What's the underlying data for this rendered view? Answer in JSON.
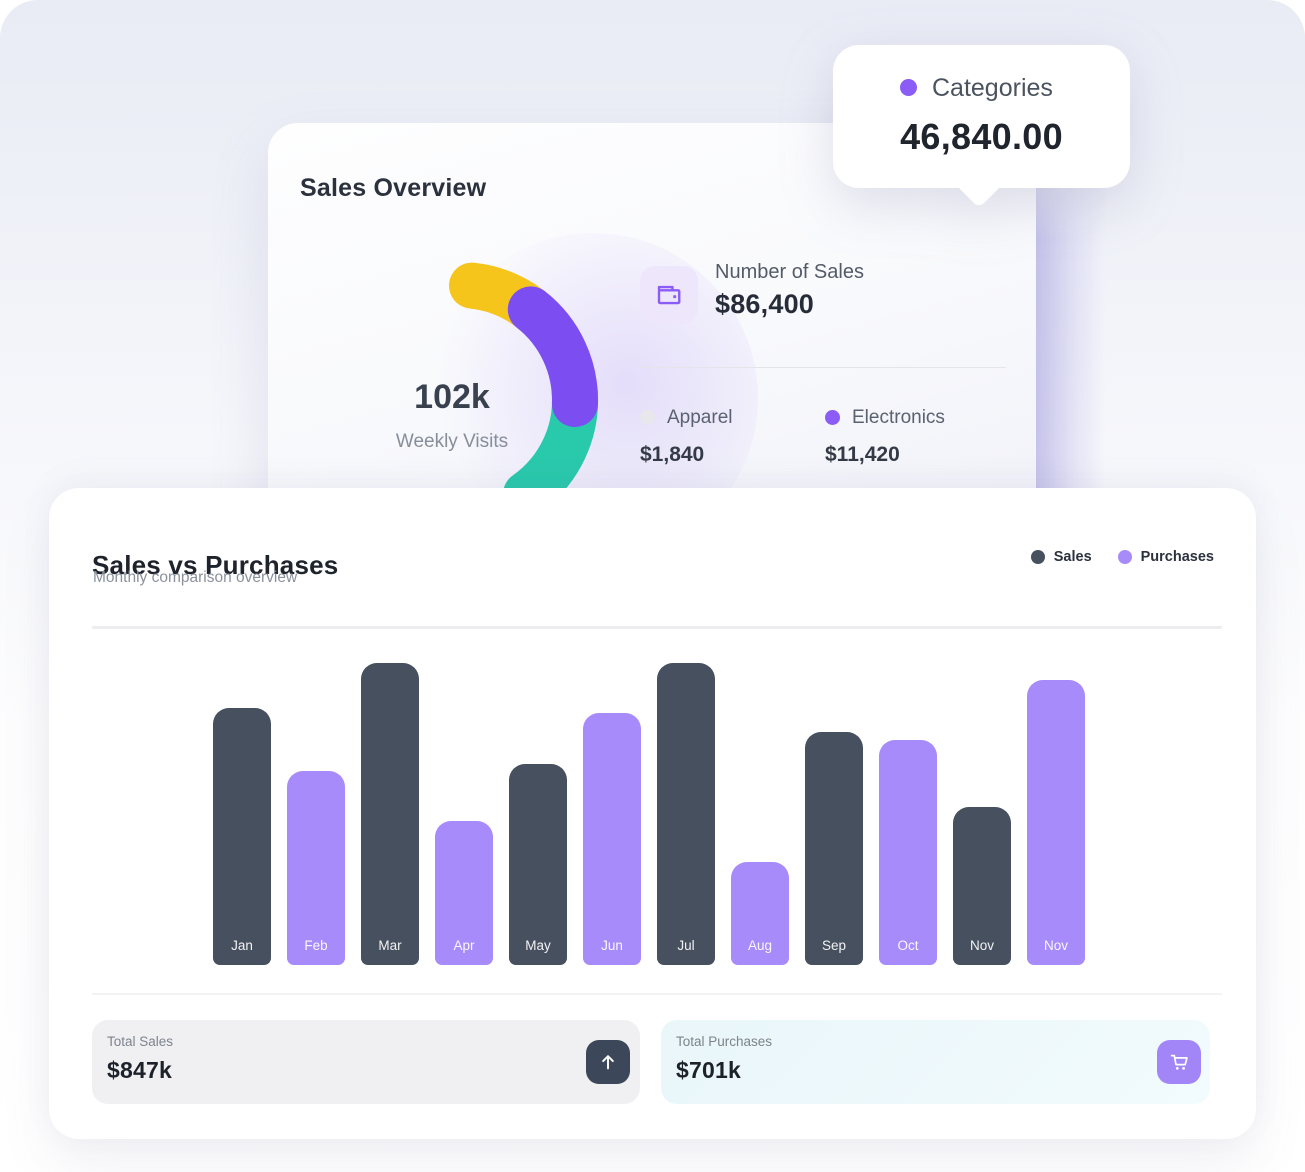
{
  "colors": {
    "sales": "#47505F",
    "purchases": "#A78BFA",
    "accent_purple": "#8B5CF6",
    "gauge_yellow": "#F6C51B",
    "gauge_purple": "#7C4DF0",
    "gauge_teal": "#29C9AC",
    "apparel_dot": "#E7E7EC"
  },
  "tooltip": {
    "label": "Categories",
    "value": "46,840.00",
    "dot_color": "#8B5CF6"
  },
  "sales_overview": {
    "title": "Sales Overview",
    "gauge": {
      "value": "102k",
      "caption": "Weekly Visits",
      "segments": [
        {
          "name": "yellow",
          "color": "#F6C51B"
        },
        {
          "name": "purple",
          "color": "#7C4DF0"
        },
        {
          "name": "teal",
          "color": "#29C9AC"
        }
      ]
    },
    "number_of_sales": {
      "icon": "wallet-icon",
      "label": "Number of Sales",
      "value": "$86,400"
    },
    "breakdown": [
      {
        "label": "Apparel",
        "value": "$1,840",
        "dot_color": "#E7E7EC"
      },
      {
        "label": "Electronics",
        "value": "$11,420",
        "dot_color": "#8B5CF6"
      }
    ]
  },
  "sales_vs_purchases": {
    "title": "Sales vs Purchases",
    "subtitle": "Monthly comparison overview",
    "legend": [
      {
        "label": "Sales",
        "color": "#47505F"
      },
      {
        "label": "Purchases",
        "color": "#A78BFA"
      }
    ],
    "chart_data": {
      "type": "bar",
      "unit": "USD thousands (values estimated from bar heights; alternating series)",
      "bars": [
        {
          "month": "Jan",
          "series": "sales",
          "value_k": 150
        },
        {
          "month": "Feb",
          "series": "purchases",
          "value_k": 113
        },
        {
          "month": "Mar",
          "series": "sales",
          "value_k": 176
        },
        {
          "month": "Apr",
          "series": "purchases",
          "value_k": 84
        },
        {
          "month": "May",
          "series": "sales",
          "value_k": 117
        },
        {
          "month": "Jun",
          "series": "purchases",
          "value_k": 147
        },
        {
          "month": "Jul",
          "series": "sales",
          "value_k": 176
        },
        {
          "month": "Aug",
          "series": "purchases",
          "value_k": 60
        },
        {
          "month": "Sep",
          "series": "sales",
          "value_k": 136
        },
        {
          "month": "Oct",
          "series": "purchases",
          "value_k": 131
        },
        {
          "month": "Nov",
          "series": "sales",
          "value_k": 92
        },
        {
          "month": "Nov",
          "series": "purchases",
          "value_k": 166
        }
      ],
      "legend_position": "top-right",
      "grid": false
    },
    "totals": [
      {
        "label": "Total Sales",
        "value": "$847k",
        "icon": "arrow-up-icon"
      },
      {
        "label": "Total Purchases",
        "value": "$701k",
        "icon": "cart-icon"
      }
    ]
  }
}
